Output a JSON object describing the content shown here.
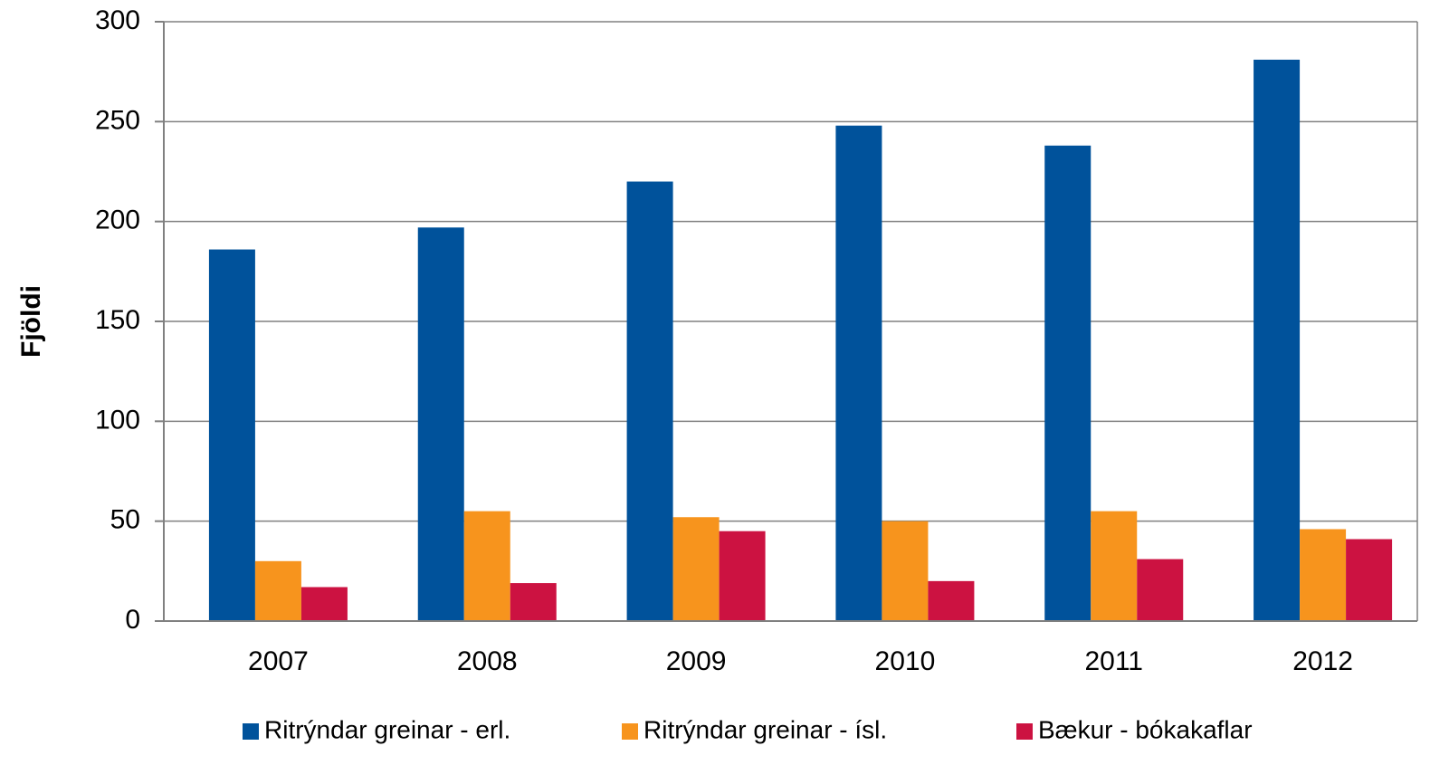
{
  "chart_data": {
    "type": "bar",
    "ylabel": "Fjöldi",
    "categories": [
      "2007",
      "2008",
      "2009",
      "2010",
      "2011",
      "2012"
    ],
    "series": [
      {
        "name": "Ritrýndar greinar - erl.",
        "color": "#00529b",
        "values": [
          186,
          197,
          220,
          248,
          238,
          281
        ]
      },
      {
        "name": "Ritrýndar greinar - ísl.",
        "color": "#f7941d",
        "values": [
          30,
          55,
          52,
          50,
          55,
          46
        ]
      },
      {
        "name": "Bækur - bókakaflar",
        "color": "#cc1241",
        "values": [
          17,
          19,
          45,
          20,
          31,
          41
        ]
      }
    ],
    "ylim": [
      0,
      300
    ],
    "yticks": [
      0,
      50,
      100,
      150,
      200,
      250,
      300
    ],
    "grid": true,
    "legend": "bottom"
  }
}
